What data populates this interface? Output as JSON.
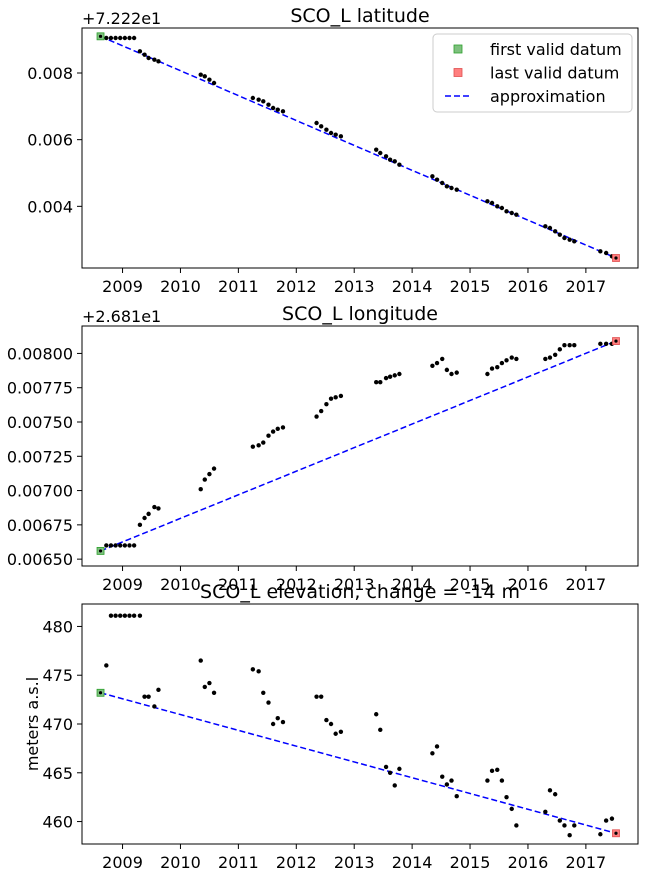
{
  "chart_data": [
    {
      "type": "scatter",
      "title": "SCO_L latitude",
      "offset_label": "+7.222e1",
      "ylabel": "",
      "xlim": [
        2008.3,
        2017.9
      ],
      "ylim": [
        0.00215,
        0.00935
      ],
      "yticks": [
        0.004,
        0.006,
        0.008
      ],
      "ytick_labels": [
        "0.004",
        "0.006",
        "0.008"
      ],
      "show_legend": true,
      "series": [
        {
          "kind": "points",
          "x": [
            2008.62,
            2008.72,
            2008.8,
            2008.88,
            2008.96,
            2009.04,
            2009.12,
            2009.2,
            2009.3,
            2009.38,
            2009.45,
            2009.55,
            2009.62,
            2010.35,
            2010.42,
            2010.5,
            2010.58,
            2011.25,
            2011.35,
            2011.43,
            2011.52,
            2011.6,
            2011.68,
            2011.77,
            2012.35,
            2012.43,
            2012.52,
            2012.6,
            2012.68,
            2012.77,
            2013.38,
            2013.45,
            2013.55,
            2013.62,
            2013.7,
            2013.78,
            2014.35,
            2014.43,
            2014.52,
            2014.6,
            2014.68,
            2014.77,
            2015.3,
            2015.38,
            2015.47,
            2015.55,
            2015.63,
            2015.72,
            2015.8,
            2016.3,
            2016.38,
            2016.47,
            2016.55,
            2016.63,
            2016.72,
            2016.8,
            2017.25,
            2017.35,
            2017.45,
            2017.52
          ],
          "y": [
            0.0091,
            0.00905,
            0.00905,
            0.00905,
            0.00905,
            0.00905,
            0.00905,
            0.00905,
            0.00865,
            0.00855,
            0.00845,
            0.0084,
            0.00835,
            0.00795,
            0.0079,
            0.0078,
            0.0077,
            0.00725,
            0.0072,
            0.00715,
            0.00705,
            0.00695,
            0.0069,
            0.00685,
            0.0065,
            0.0064,
            0.0063,
            0.0062,
            0.00615,
            0.0061,
            0.0057,
            0.0056,
            0.0055,
            0.0054,
            0.00535,
            0.00525,
            0.0049,
            0.0048,
            0.0047,
            0.0046,
            0.00455,
            0.0045,
            0.00415,
            0.0041,
            0.004,
            0.00395,
            0.00385,
            0.0038,
            0.00375,
            0.0034,
            0.00335,
            0.00325,
            0.00315,
            0.00305,
            0.003,
            0.00295,
            0.00265,
            0.0026,
            0.0025,
            0.00245
          ]
        },
        {
          "kind": "first",
          "name": "first valid datum",
          "x": [
            2008.62
          ],
          "y": [
            0.0091
          ]
        },
        {
          "kind": "last",
          "name": "last valid datum",
          "x": [
            2017.52
          ],
          "y": [
            0.00245
          ]
        },
        {
          "kind": "approx",
          "name": "approximation",
          "x": [
            2008.62,
            2017.52
          ],
          "y": [
            0.0091,
            0.00245
          ]
        }
      ]
    },
    {
      "type": "scatter",
      "title": "SCO_L longitude",
      "offset_label": "+2.681e1",
      "ylabel": "",
      "xlim": [
        2008.3,
        2017.9
      ],
      "ylim": [
        0.00645,
        0.0082
      ],
      "yticks": [
        0.0065,
        0.00675,
        0.007,
        0.00725,
        0.0075,
        0.00775,
        0.008
      ],
      "ytick_labels": [
        "0.00650",
        "0.00675",
        "0.00700",
        "0.00725",
        "0.00750",
        "0.00775",
        "0.00800"
      ],
      "show_legend": false,
      "series": [
        {
          "kind": "points",
          "x": [
            2008.62,
            2008.72,
            2008.8,
            2008.88,
            2008.96,
            2009.04,
            2009.12,
            2009.2,
            2009.3,
            2009.38,
            2009.45,
            2009.55,
            2009.62,
            2010.35,
            2010.42,
            2010.5,
            2010.58,
            2011.25,
            2011.35,
            2011.43,
            2011.52,
            2011.6,
            2011.68,
            2011.77,
            2012.35,
            2012.43,
            2012.52,
            2012.6,
            2012.68,
            2012.77,
            2013.38,
            2013.45,
            2013.55,
            2013.62,
            2013.7,
            2013.78,
            2014.35,
            2014.43,
            2014.52,
            2014.6,
            2014.68,
            2014.77,
            2015.3,
            2015.38,
            2015.47,
            2015.55,
            2015.63,
            2015.72,
            2015.8,
            2016.3,
            2016.38,
            2016.47,
            2016.55,
            2016.63,
            2016.72,
            2016.8,
            2017.25,
            2017.35,
            2017.45,
            2017.52
          ],
          "y": [
            0.00657,
            0.0066,
            0.0066,
            0.0066,
            0.0066,
            0.0066,
            0.0066,
            0.0066,
            0.00675,
            0.0068,
            0.00683,
            0.00688,
            0.00687,
            0.00701,
            0.00708,
            0.00712,
            0.00716,
            0.00732,
            0.00733,
            0.00735,
            0.0074,
            0.00743,
            0.00745,
            0.00746,
            0.00754,
            0.00758,
            0.00763,
            0.00767,
            0.00768,
            0.00769,
            0.00779,
            0.00779,
            0.00782,
            0.00783,
            0.00784,
            0.00785,
            0.00791,
            0.00793,
            0.00796,
            0.00788,
            0.00785,
            0.00786,
            0.00785,
            0.00789,
            0.0079,
            0.00793,
            0.00795,
            0.00797,
            0.00796,
            0.00796,
            0.00797,
            0.00799,
            0.00803,
            0.00806,
            0.00806,
            0.00806,
            0.00807,
            0.00807,
            0.00807,
            0.00808
          ]
        },
        {
          "kind": "first",
          "name": "first valid datum",
          "x": [
            2008.62
          ],
          "y": [
            0.00656
          ]
        },
        {
          "kind": "last",
          "name": "last valid datum",
          "x": [
            2017.52
          ],
          "y": [
            0.00809
          ]
        },
        {
          "kind": "approx",
          "name": "approximation",
          "x": [
            2008.62,
            2017.52
          ],
          "y": [
            0.00656,
            0.00809
          ]
        }
      ]
    },
    {
      "type": "scatter",
      "title": "SCO_L elevation, change = -14 m",
      "offset_label": "",
      "ylabel": "meters a.s.l",
      "xlim": [
        2008.3,
        2017.9
      ],
      "ylim": [
        457.7,
        482.3
      ],
      "yticks": [
        460,
        465,
        470,
        475,
        480
      ],
      "ytick_labels": [
        "460",
        "465",
        "470",
        "475",
        "480"
      ],
      "show_legend": false,
      "series": [
        {
          "kind": "points",
          "x": [
            2008.62,
            2008.72,
            2008.8,
            2008.88,
            2008.96,
            2009.04,
            2009.12,
            2009.2,
            2009.3,
            2009.38,
            2009.45,
            2009.55,
            2009.62,
            2010.35,
            2010.42,
            2010.5,
            2010.58,
            2011.25,
            2011.35,
            2011.43,
            2011.52,
            2011.6,
            2011.68,
            2011.77,
            2012.35,
            2012.43,
            2012.52,
            2012.6,
            2012.68,
            2012.77,
            2013.38,
            2013.45,
            2013.55,
            2013.62,
            2013.7,
            2013.78,
            2014.35,
            2014.43,
            2014.52,
            2014.6,
            2014.68,
            2014.77,
            2015.3,
            2015.38,
            2015.47,
            2015.55,
            2015.63,
            2015.72,
            2015.8,
            2016.3,
            2016.38,
            2016.47,
            2016.55,
            2016.63,
            2016.72,
            2016.8,
            2017.25,
            2017.35,
            2017.45,
            2017.52
          ],
          "y": [
            473.2,
            476.0,
            481.1,
            481.1,
            481.1,
            481.1,
            481.1,
            481.1,
            481.1,
            472.8,
            472.8,
            471.8,
            473.5,
            476.5,
            473.8,
            474.2,
            473.2,
            475.6,
            475.4,
            473.2,
            472.2,
            470.0,
            470.6,
            470.2,
            472.8,
            472.8,
            470.4,
            470.0,
            469.0,
            469.2,
            471.0,
            469.4,
            465.6,
            465.0,
            463.7,
            465.4,
            467.0,
            467.7,
            464.6,
            463.8,
            464.2,
            462.6,
            464.2,
            465.2,
            465.3,
            464.2,
            462.5,
            461.3,
            459.6,
            461.0,
            463.2,
            462.8,
            460.1,
            459.6,
            458.6,
            459.6,
            458.7,
            460.1,
            460.3,
            458.8
          ]
        },
        {
          "kind": "first",
          "name": "first valid datum",
          "x": [
            2008.62
          ],
          "y": [
            473.2
          ]
        },
        {
          "kind": "last",
          "name": "last valid datum",
          "x": [
            2017.52
          ],
          "y": [
            458.8
          ]
        },
        {
          "kind": "approx",
          "name": "approximation",
          "x": [
            2008.62,
            2017.52
          ],
          "y": [
            473.2,
            458.8
          ]
        }
      ]
    }
  ],
  "xticks": [
    2009,
    2010,
    2011,
    2012,
    2013,
    2014,
    2015,
    2016,
    2017
  ],
  "xtick_labels": [
    "2009",
    "2010",
    "2011",
    "2012",
    "2013",
    "2014",
    "2015",
    "2016",
    "2017"
  ],
  "legend": [
    {
      "label": "first valid datum",
      "kind": "first"
    },
    {
      "label": "last valid datum",
      "kind": "last"
    },
    {
      "label": "approximation",
      "kind": "approx"
    }
  ],
  "colors": {
    "points": "#000000",
    "first_fill": "#7fc07f",
    "first_edge": "#2ca02c",
    "last_fill": "#ff7f7f",
    "last_edge": "#e05050",
    "approx": "#0000ff"
  }
}
